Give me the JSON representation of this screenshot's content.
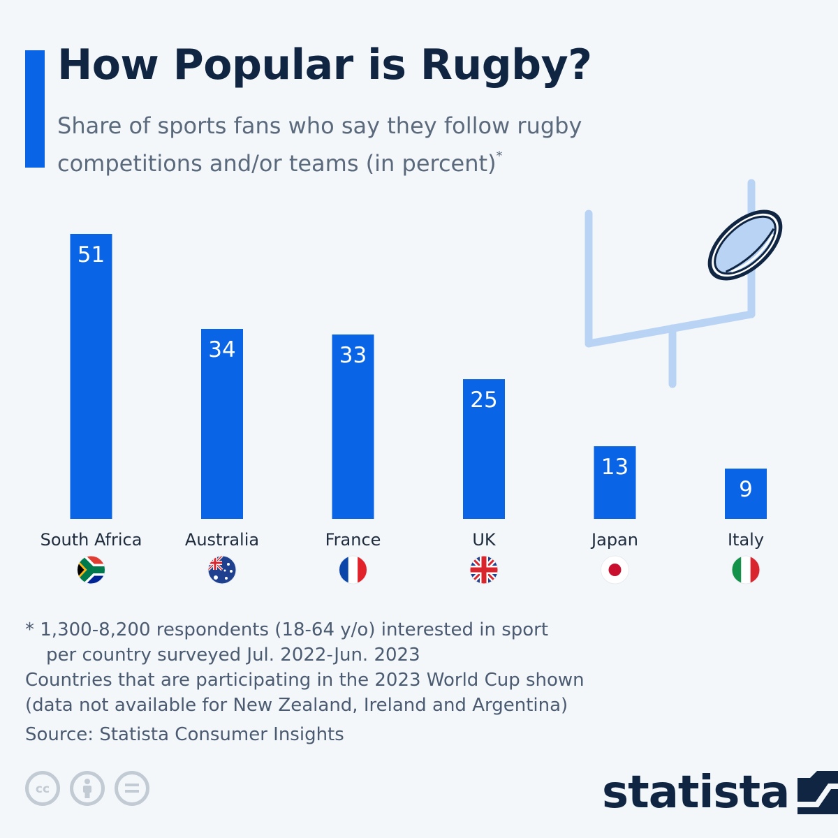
{
  "header": {
    "title": "How Popular is Rugby?",
    "subtitle": "Share of sports fans who say they follow rugby competitions and/or teams (in percent)",
    "subtitle_marker": "*"
  },
  "chart_data": {
    "type": "bar",
    "categories": [
      "South Africa",
      "Australia",
      "France",
      "UK",
      "Japan",
      "Italy"
    ],
    "values": [
      51,
      34,
      33,
      25,
      13,
      9
    ],
    "title": "How Popular is Rugby?",
    "ylabel": "",
    "xlabel": "",
    "ylim": [
      0,
      51
    ],
    "grid": false,
    "bar_color": "#0a64e6",
    "flags": [
      "south-africa-flag-icon",
      "australia-flag-icon",
      "france-flag-icon",
      "uk-flag-icon",
      "japan-flag-icon",
      "italy-flag-icon"
    ]
  },
  "footnotes": {
    "line1": "* 1,300-8,200 respondents (18-64 y/o) interested in sport",
    "line2": "per country surveyed Jul. 2022-Jun. 2023",
    "line3": "Countries that are participating in the 2023 World Cup shown",
    "line4": "(data not available for New Zealand, Ireland and Argentina)",
    "source": "Source: Statista Consumer Insights"
  },
  "branding": {
    "logo_text": "statista",
    "license_icons": [
      "creative-commons-icon",
      "attribution-icon",
      "no-derivatives-icon"
    ]
  },
  "colors": {
    "accent": "#0a64e6",
    "title": "#0f2541",
    "goalpost": "#b9d3f5"
  }
}
